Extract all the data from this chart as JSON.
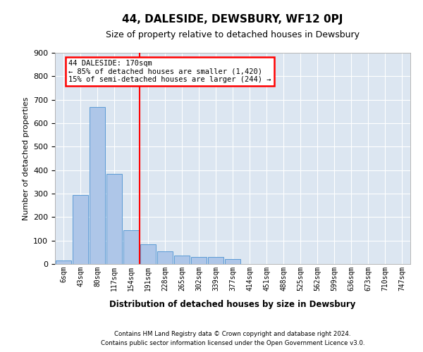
{
  "title": "44, DALESIDE, DEWSBURY, WF12 0PJ",
  "subtitle": "Size of property relative to detached houses in Dewsbury",
  "xlabel": "Distribution of detached houses by size in Dewsbury",
  "ylabel": "Number of detached properties",
  "bar_labels": [
    "6sqm",
    "43sqm",
    "80sqm",
    "117sqm",
    "154sqm",
    "191sqm",
    "228sqm",
    "265sqm",
    "302sqm",
    "339sqm",
    "377sqm",
    "414sqm",
    "451sqm",
    "488sqm",
    "525sqm",
    "562sqm",
    "599sqm",
    "636sqm",
    "673sqm",
    "710sqm",
    "747sqm"
  ],
  "bar_values": [
    15,
    295,
    670,
    385,
    145,
    85,
    55,
    35,
    30,
    30,
    20,
    0,
    0,
    0,
    0,
    0,
    0,
    0,
    0,
    0,
    0
  ],
  "bar_color": "#aec6e8",
  "bar_edge_color": "#5b9bd5",
  "plot_bg_color": "#dce6f1",
  "grid_color": "#c8d8ec",
  "vline_x": 4.5,
  "vline_color": "red",
  "annotation_line1": "44 DALESIDE: 170sqm",
  "annotation_line2": "← 85% of detached houses are smaller (1,420)",
  "annotation_line3": "15% of semi-detached houses are larger (244) →",
  "annotation_box_color": "white",
  "annotation_box_edge_color": "red",
  "ylim": [
    0,
    900
  ],
  "yticks": [
    0,
    100,
    200,
    300,
    400,
    500,
    600,
    700,
    800,
    900
  ],
  "footer_line1": "Contains HM Land Registry data © Crown copyright and database right 2024.",
  "footer_line2": "Contains public sector information licensed under the Open Government Licence v3.0."
}
